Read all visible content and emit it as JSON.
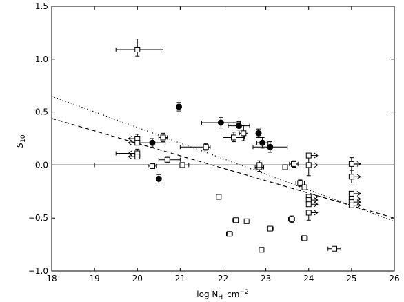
{
  "chart_data": {
    "type": "scatter",
    "xlim": [
      18,
      26
    ],
    "ylim": [
      -1.0,
      1.5
    ],
    "xticks": [
      18,
      19,
      20,
      21,
      22,
      23,
      24,
      25,
      26
    ],
    "yticks": [
      -1.0,
      -0.5,
      0.0,
      0.5,
      1.0,
      1.5
    ],
    "xtick_labels": [
      "18",
      "19",
      "20",
      "21",
      "22",
      "23",
      "24",
      "25",
      "26"
    ],
    "ytick_labels": [
      "−1.0",
      "−0.5",
      "0.0",
      "0.5",
      "1.0",
      "1.5"
    ],
    "xlabel": "log N",
    "xlabel_sub": "H",
    "xlabel_unit": "cm",
    "xlabel_sup": "−2",
    "ylabel": "S",
    "ylabel_sub": "10",
    "grid": false,
    "zero_line": 0.0,
    "lines": [
      {
        "style": "dotted",
        "points": [
          [
            18,
            0.65
          ],
          [
            26,
            -0.53
          ]
        ]
      },
      {
        "style": "dashed",
        "points": [
          [
            18,
            0.44
          ],
          [
            26,
            -0.5
          ]
        ]
      }
    ],
    "series": [
      {
        "marker": "filled-circle",
        "points": [
          {
            "x": 20.35,
            "y": 0.21,
            "xerr": [
              0.3,
              0.3
            ],
            "yerr": [
              0.04,
              0.04
            ]
          },
          {
            "x": 20.5,
            "y": -0.13,
            "xerr": [
              0,
              0
            ],
            "yerr": [
              0.04,
              0.04
            ]
          },
          {
            "x": 20.97,
            "y": 0.55,
            "xerr": [
              0,
              0
            ],
            "yerr": [
              0.04,
              0.04
            ]
          },
          {
            "x": 21.95,
            "y": 0.4,
            "xerr": [
              0.45,
              0.45
            ],
            "yerr": [
              0.05,
              0.05
            ]
          },
          {
            "x": 22.37,
            "y": 0.37,
            "xerr": [
              0.25,
              0.25
            ],
            "yerr": [
              0.04,
              0.04
            ]
          },
          {
            "x": 22.83,
            "y": 0.3,
            "xerr": [
              0,
              0
            ],
            "yerr": [
              0.04,
              0.04
            ]
          },
          {
            "x": 22.92,
            "y": 0.21,
            "xerr": [
              0.13,
              0.13
            ],
            "yerr": [
              0.05,
              0.05
            ]
          },
          {
            "x": 23.1,
            "y": 0.17,
            "xerr": [
              0.4,
              0.4
            ],
            "yerr": [
              0.05,
              0.05
            ]
          }
        ]
      },
      {
        "marker": "open-square",
        "points": [
          {
            "x": 20.0,
            "y": 1.09,
            "xerr": [
              0.5,
              0.6
            ],
            "yerr": [
              0.06,
              0.1
            ]
          },
          {
            "x": 20.6,
            "y": 0.26,
            "xerr": [
              0.1,
              0.1
            ],
            "yerr": [
              0.04,
              0.04
            ]
          },
          {
            "x": 20.0,
            "y": 0.25,
            "xerr": [
              0,
              0
            ],
            "yerr": [
              0.04,
              0.04
            ],
            "arrow": "left"
          },
          {
            "x": 20.0,
            "y": 0.21,
            "xerr": [
              0,
              0
            ],
            "yerr": [
              0,
              0
            ],
            "arrow": "left"
          },
          {
            "x": 20.0,
            "y": 0.11,
            "xerr": [
              0.5,
              0
            ],
            "yerr": [
              0.04,
              0.04
            ],
            "arrow": "left"
          },
          {
            "x": 20.0,
            "y": 0.08,
            "xerr": [
              0,
              0
            ],
            "yerr": [
              0,
              0
            ],
            "arrow": "left"
          },
          {
            "x": 20.7,
            "y": 0.05,
            "xerr": [
              0.2,
              0.3
            ],
            "yerr": [
              0.03,
              0.03
            ]
          },
          {
            "x": 20.35,
            "y": -0.01,
            "xerr": [
              0.1,
              0.1
            ],
            "yerr": [
              0.02,
              0.02
            ]
          },
          {
            "x": 21.05,
            "y": 0.0,
            "xerr": [
              2.05,
              0.15
            ],
            "yerr": [
              0.02,
              0.02
            ]
          },
          {
            "x": 21.6,
            "y": 0.17,
            "xerr": [
              0.6,
              0.1
            ],
            "yerr": [
              0.03,
              0.03
            ]
          },
          {
            "x": 22.25,
            "y": 0.26,
            "xerr": [
              0.25,
              0.25
            ],
            "yerr": [
              0.04,
              0.05
            ]
          },
          {
            "x": 22.48,
            "y": 0.3,
            "xerr": [
              0.1,
              0.1
            ],
            "yerr": [
              0.07,
              0.07
            ]
          },
          {
            "x": 22.85,
            "y": -0.02,
            "xerr": [
              0.1,
              0.1
            ],
            "yerr": [
              0.04,
              0.06
            ]
          },
          {
            "x": 22.85,
            "y": 0.0,
            "xerr": [
              0,
              0
            ],
            "yerr": [
              0,
              0
            ]
          },
          {
            "x": 23.45,
            "y": -0.02,
            "xerr": [
              0.05,
              0.05
            ],
            "yerr": [
              0.02,
              0.02
            ]
          },
          {
            "x": 23.65,
            "y": 0.01,
            "xerr": [
              0.1,
              0.1
            ],
            "yerr": [
              0.03,
              0.03
            ]
          },
          {
            "x": 23.8,
            "y": -0.17,
            "xerr": [
              0.1,
              0.1
            ],
            "yerr": [
              0.03,
              0.03
            ]
          },
          {
            "x": 23.9,
            "y": -0.21,
            "xerr": [
              0,
              0
            ],
            "yerr": [
              0,
              0
            ]
          },
          {
            "x": 24.0,
            "y": 0.09,
            "xerr": [
              0,
              0
            ],
            "yerr": [
              0.19,
              0
            ],
            "arrow": "right"
          },
          {
            "x": 24.0,
            "y": 0.0,
            "xerr": [
              0,
              0
            ],
            "yerr": [
              0,
              0
            ],
            "arrow": "right"
          },
          {
            "x": 24.0,
            "y": -0.3,
            "xerr": [
              0,
              0
            ],
            "yerr": [
              0,
              0
            ],
            "arrow": "right"
          },
          {
            "x": 24.0,
            "y": -0.33,
            "xerr": [
              0,
              0
            ],
            "yerr": [
              0,
              0
            ],
            "arrow": "right"
          },
          {
            "x": 24.0,
            "y": -0.37,
            "xerr": [
              0,
              0
            ],
            "yerr": [
              0,
              0
            ],
            "arrow": "right"
          },
          {
            "x": 24.0,
            "y": -0.45,
            "xerr": [
              0,
              0
            ],
            "yerr": [
              0.07,
              0
            ],
            "arrow": "right"
          },
          {
            "x": 21.9,
            "y": -0.3,
            "xerr": [
              0.05,
              0.05
            ],
            "yerr": [
              0.02,
              0.02
            ]
          },
          {
            "x": 23.6,
            "y": -0.51,
            "xerr": [
              0.07,
              0.07
            ],
            "yerr": [
              0.03,
              0.03
            ]
          },
          {
            "x": 22.3,
            "y": -0.52,
            "xerr": [
              0.07,
              0.07
            ],
            "yerr": [
              0.01,
              0.01
            ]
          },
          {
            "x": 22.55,
            "y": -0.53,
            "xerr": [
              0.05,
              0.05
            ],
            "yerr": [
              0.01,
              0.01
            ]
          },
          {
            "x": 23.1,
            "y": -0.6,
            "xerr": [
              0.07,
              0.07
            ],
            "yerr": [
              0.01,
              0.01
            ]
          },
          {
            "x": 22.15,
            "y": -0.65,
            "xerr": [
              0.07,
              0.07
            ],
            "yerr": [
              0.01,
              0.01
            ]
          },
          {
            "x": 23.9,
            "y": -0.69,
            "xerr": [
              0.07,
              0.07
            ],
            "yerr": [
              0.01,
              0.01
            ]
          },
          {
            "x": 22.9,
            "y": -0.8,
            "xerr": [
              0.05,
              0.05
            ],
            "yerr": [
              0.01,
              0.01
            ]
          },
          {
            "x": 24.6,
            "y": -0.79,
            "xerr": [
              0.15,
              0.15
            ],
            "yerr": [
              0.01,
              0.01
            ]
          },
          {
            "x": 25.0,
            "y": 0.01,
            "xerr": [
              0,
              0
            ],
            "yerr": [
              0.06,
              0.06
            ],
            "arrow": "right"
          },
          {
            "x": 25.0,
            "y": -0.11,
            "xerr": [
              0,
              0
            ],
            "yerr": [
              0.06,
              0.06
            ],
            "arrow": "right"
          },
          {
            "x": 25.0,
            "y": -0.27,
            "xerr": [
              0,
              0
            ],
            "yerr": [
              0,
              0
            ],
            "arrow": "right"
          },
          {
            "x": 25.0,
            "y": -0.32,
            "xerr": [
              0,
              0
            ],
            "yerr": [
              0,
              0
            ],
            "arrow": "right"
          },
          {
            "x": 25.0,
            "y": -0.35,
            "xerr": [
              0,
              0
            ],
            "yerr": [
              0,
              0
            ],
            "arrow": "right"
          },
          {
            "x": 25.0,
            "y": -0.38,
            "xerr": [
              0,
              0
            ],
            "yerr": [
              0,
              0
            ],
            "arrow": "right"
          }
        ]
      }
    ]
  }
}
